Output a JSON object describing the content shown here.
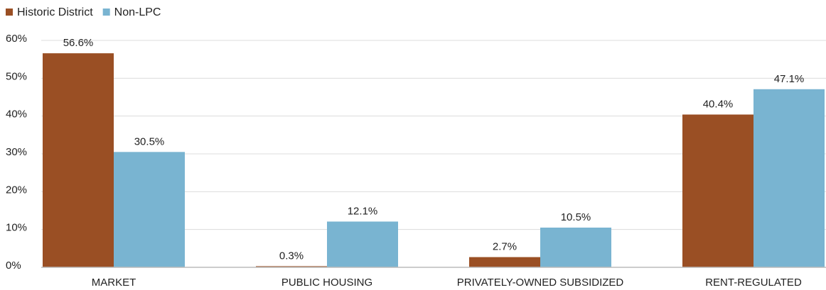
{
  "chart_data": {
    "type": "bar",
    "categories": [
      "MARKET",
      "PUBLIC HOUSING",
      "PRIVATELY-OWNED SUBSIDIZED",
      "RENT-REGULATED"
    ],
    "series": [
      {
        "name": "Historic District",
        "color": "#9a4f24",
        "values": [
          56.6,
          0.3,
          2.7,
          40.4
        ],
        "value_labels": [
          "56.6%",
          "0.3%",
          "2.7%",
          "40.4%"
        ]
      },
      {
        "name": "Non-LPC",
        "color": "#79b4d1",
        "values": [
          30.5,
          12.1,
          10.5,
          47.1
        ],
        "value_labels": [
          "30.5%",
          "12.1%",
          "10.5%",
          "47.1%"
        ]
      }
    ],
    "ylim": [
      0,
      60
    ],
    "yticks": [
      {
        "value": 0,
        "label": "0%"
      },
      {
        "value": 10,
        "label": "10%"
      },
      {
        "value": 20,
        "label": "20%"
      },
      {
        "value": 30,
        "label": "30%"
      },
      {
        "value": 40,
        "label": "40%"
      },
      {
        "value": 50,
        "label": "50%"
      },
      {
        "value": 60,
        "label": "60%"
      }
    ],
    "grid": true,
    "legend": "top-left"
  }
}
